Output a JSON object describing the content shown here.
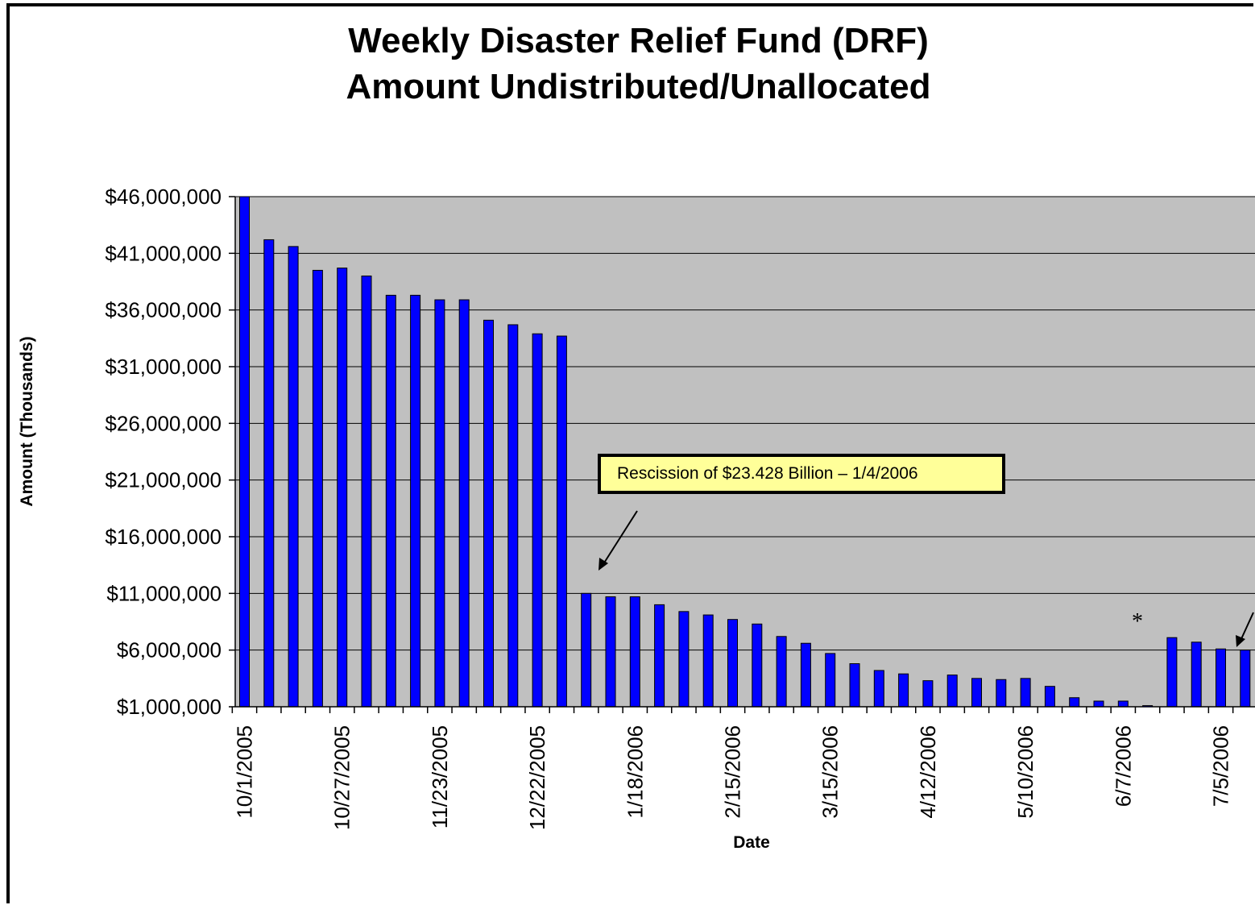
{
  "colors": {
    "plot_background": "#c0c0c0",
    "bar": "#0000ff",
    "bar_edge": "#000000",
    "callout_fill": "#ffff99",
    "gridline": "#000000"
  },
  "chart_data": {
    "type": "bar",
    "title": "Weekly Disaster Relief Fund (DRF) Amount Undistributed/Unallocated",
    "title_lines": [
      "Weekly Disaster Relief Fund (DRF)",
      "Amount Undistributed/Unallocated"
    ],
    "xlabel": "Date",
    "ylabel": "Amount (Thousands)",
    "ylim": [
      1000000,
      46000000
    ],
    "y_ticks": [
      1000000,
      6000000,
      11000000,
      16000000,
      21000000,
      26000000,
      31000000,
      36000000,
      41000000,
      46000000
    ],
    "y_tick_labels": [
      "$1,000,000",
      "$6,000,000",
      "$11,000,000",
      "$16,000,000",
      "$21,000,000",
      "$26,000,000",
      "$31,000,000",
      "$36,000,000",
      "$41,000,000",
      "$46,000,000"
    ],
    "grid": "horizontal",
    "legend": "none",
    "x_tick_labels": [
      "10/1/2005",
      "10/27/2005",
      "11/23/2005",
      "12/22/2005",
      "1/18/2006",
      "2/15/2006",
      "3/15/2006",
      "4/12/2006",
      "5/10/2006",
      "6/7/2006",
      "7/5/2006"
    ],
    "x_tick_label_positions": [
      0,
      4,
      8,
      12,
      16,
      20,
      24,
      28,
      32,
      36,
      40
    ],
    "values": [
      46000000,
      42200000,
      41600000,
      39500000,
      39700000,
      39000000,
      37300000,
      37300000,
      36900000,
      36900000,
      35100000,
      34700000,
      33900000,
      33700000,
      11000000,
      10700000,
      10700000,
      10000000,
      9400000,
      9100000,
      8700000,
      8300000,
      7200000,
      6600000,
      5700000,
      4800000,
      4200000,
      3900000,
      3300000,
      3800000,
      3500000,
      3400000,
      3500000,
      2800000,
      1800000,
      1500000,
      1500000,
      1100000,
      7100000,
      6700000,
      6100000,
      6000000
    ],
    "annotations": [
      {
        "text": "Rescission of $23.428 Billion – 1/4/2006",
        "points_to_index": 14
      },
      {
        "text": "*",
        "near_index": 37
      }
    ]
  }
}
